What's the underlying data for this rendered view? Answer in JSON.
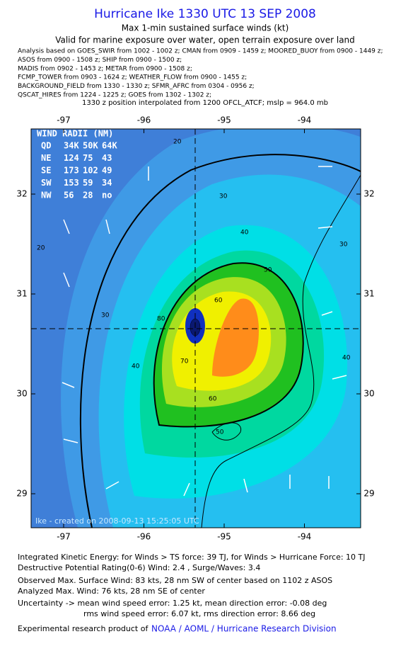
{
  "header": {
    "title": "Hurricane Ike 1330 UTC 13 SEP 2008",
    "subtitle": "Max 1-min sustained surface winds (kt)",
    "validity": "Valid for marine exposure over water, open terrain exposure over land",
    "sources": [
      "Analysis based on  GOES_SWIR from 1002 - 1002 z;  CMAN from 0909 - 1459 z;  MOORED_BUOY from 0900 - 1449 z;",
      "ASOS from 0900 - 1508 z;  SHIP from 0900 - 1500 z;",
      "MADIS from 0902 - 1453 z;  METAR from 0900 - 1508 z;",
      "FCMP_TOWER from 0903 - 1624 z;  WEATHER_FLOW from 0900 - 1455 z;",
      "BACKGROUND_FIELD from 1330 - 1330 z;  SFMR_AFRC from 0304 - 0956 z;",
      "QSCAT_HIRES from 1224 - 1225 z;  GOES from 1302 - 1302 z;"
    ],
    "position_note": "1330 z position interpolated from 1200 OFCL_ATCF; mslp = 964.0 mb"
  },
  "map": {
    "lon_ticks": [
      -97,
      -96,
      -95,
      -94
    ],
    "lat_ticks": [
      32,
      31,
      30,
      29
    ],
    "wind_radii": {
      "title": "WIND RADII (NM)",
      "rows": [
        [
          "QD",
          "34K",
          "50K",
          "64K"
        ],
        [
          "NE",
          "124",
          "75",
          "43"
        ],
        [
          "SE",
          "173",
          "102",
          "49"
        ],
        [
          "SW",
          "153",
          "59",
          "34"
        ],
        [
          "NW",
          "56",
          "28",
          "no"
        ]
      ]
    },
    "contour_labels": [
      "20",
      "20",
      "30",
      "30",
      "40",
      "40",
      "50",
      "60",
      "60",
      "70",
      "80",
      "30",
      "40",
      "50"
    ],
    "credit": "Ike - created on 2008-09-13 15:25:05 UTC"
  },
  "footer": {
    "lines": [
      "Integrated Kinetic Energy:  for Winds > TS force: 39 TJ,  for Winds > Hurricane Force: 10 TJ",
      "Destructive Potential Rating(0-6)   Wind: 2.4 , Surge/Waves: 3.4",
      "Observed Max. Surface Wind: 83 kts, 28 nm SW of center based on 1102 z ASOS",
      "Analyzed Max. Wind: 76 kts, 28 nm SE of center",
      "Uncertainty -> mean wind speed error: 1.25 kt,    mean direction error:  -0.08 deg",
      "rms wind speed error: 6.07 kt,   rms direction error: 8.66 deg"
    ],
    "credit_prefix": "Experimental research product of",
    "credit_org": "NOAA / AOML / Hurricane Research Division"
  }
}
